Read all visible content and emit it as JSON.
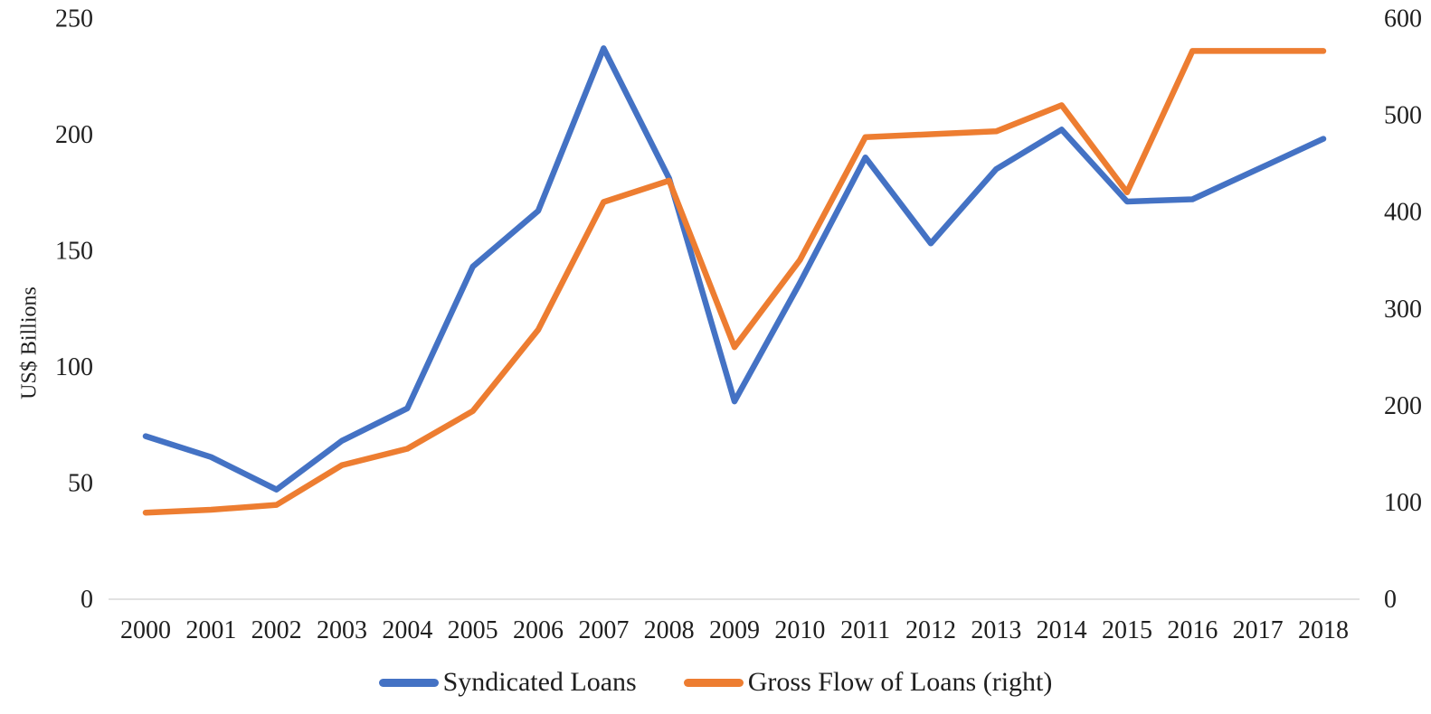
{
  "chart_data": {
    "type": "line",
    "title": "",
    "ylabel_left": "US$ Billions",
    "ylabel_right": "",
    "categories": [
      "2000",
      "2001",
      "2002",
      "2003",
      "2004",
      "2005",
      "2006",
      "2007",
      "2008",
      "2009",
      "2010",
      "2011",
      "2012",
      "2013",
      "2014",
      "2015",
      "2016",
      "2017",
      "2018"
    ],
    "series": [
      {
        "name": "Syndicated Loans",
        "axis": "left",
        "color": "#4472C4",
        "values": [
          70,
          61,
          47,
          68,
          82,
          143,
          167,
          237,
          181,
          85,
          136,
          190,
          153,
          185,
          202,
          171,
          172,
          185,
          198
        ]
      },
      {
        "name": "Gross Flow of Loans (right)",
        "axis": "right",
        "color": "#ED7D31",
        "values": [
          89,
          92,
          97,
          138,
          155,
          194,
          278,
          410,
          432,
          260,
          350,
          477,
          480,
          483,
          510,
          420,
          566,
          566,
          566
        ]
      }
    ],
    "left_axis": {
      "min": 0,
      "max": 250,
      "ticks": [
        0,
        50,
        100,
        150,
        200,
        250
      ]
    },
    "right_axis": {
      "min": 0,
      "max": 600,
      "ticks": [
        0,
        100,
        200,
        300,
        400,
        500,
        600
      ]
    },
    "legend_position": "bottom",
    "grid": false,
    "axis_line_color": "#D9D9D9"
  }
}
